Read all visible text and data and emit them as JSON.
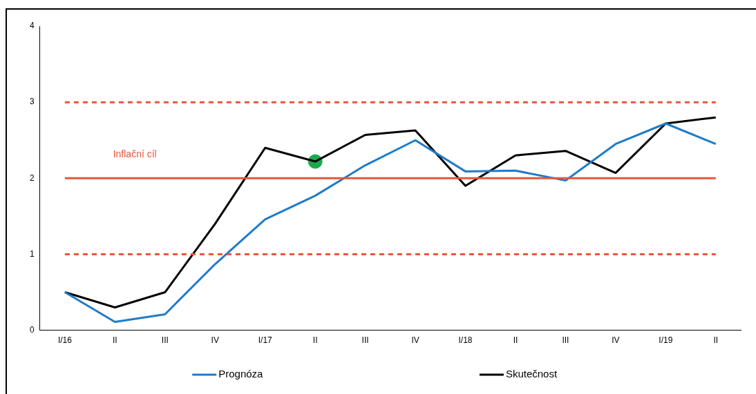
{
  "chart_data": {
    "type": "line",
    "categories": [
      "I/16",
      "II",
      "III",
      "IV",
      "I/17",
      "II",
      "III",
      "IV",
      "I/18",
      "II",
      "III",
      "IV",
      "I/19",
      "II"
    ],
    "series": [
      {
        "name": "Prognóza",
        "color": "#1f7bc8",
        "values": [
          0.5,
          0.11,
          0.21,
          0.87,
          1.46,
          1.77,
          2.17,
          2.5,
          2.09,
          2.1,
          1.97,
          2.45,
          2.72,
          2.45
        ]
      },
      {
        "name": "Skutečnost",
        "color": "#000000",
        "values": [
          0.5,
          0.3,
          0.5,
          1.4,
          2.4,
          2.22,
          2.57,
          2.63,
          1.9,
          2.3,
          2.36,
          2.07,
          2.72,
          2.8
        ]
      },
      {
        "type": "scatter",
        "color": "#1aaa4a",
        "marker": "circle",
        "values": [
          null,
          null,
          null,
          null,
          null,
          2.22,
          null,
          null,
          null,
          null,
          null,
          null,
          null,
          null
        ]
      }
    ],
    "ylim": [
      0,
      4
    ],
    "yticks": [
      0,
      1,
      2,
      3,
      4
    ],
    "grid": false,
    "legend": "bottom",
    "marker": "none",
    "line_style": "solid",
    "ref_lines": [
      {
        "axis": "y",
        "value": 2,
        "label": "Inflační cíl",
        "color": "#e8553a",
        "line_style": "solid"
      },
      {
        "axis": "y",
        "value": 1,
        "color": "#e8553a",
        "line_style": "dashed"
      },
      {
        "axis": "y",
        "value": 3,
        "color": "#e8553a",
        "line_style": "dashed"
      }
    ]
  }
}
